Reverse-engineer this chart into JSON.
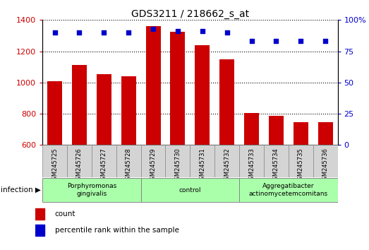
{
  "title": "GDS3211 / 218662_s_at",
  "samples": [
    "GSM245725",
    "GSM245726",
    "GSM245727",
    "GSM245728",
    "GSM245729",
    "GSM245730",
    "GSM245731",
    "GSM245732",
    "GSM245733",
    "GSM245734",
    "GSM245735",
    "GSM245736"
  ],
  "counts": [
    1010,
    1110,
    1055,
    1042,
    1360,
    1325,
    1237,
    1147,
    803,
    785,
    745,
    748
  ],
  "percentile_ranks": [
    90,
    90,
    90,
    90,
    93,
    91,
    91,
    90,
    83,
    83,
    83,
    83
  ],
  "ylim_left": [
    600,
    1400
  ],
  "ylim_right": [
    0,
    100
  ],
  "yticks_left": [
    600,
    800,
    1000,
    1200,
    1400
  ],
  "yticks_right": [
    0,
    25,
    50,
    75,
    100
  ],
  "bar_color": "#cc0000",
  "dot_color": "#0000cc",
  "groups": [
    {
      "label": "Porphyromonas\ngingivalis",
      "start": 0,
      "end": 3,
      "color": "#aaffaa"
    },
    {
      "label": "control",
      "start": 4,
      "end": 7,
      "color": "#aaffaa"
    },
    {
      "label": "Aggregatibacter\nactinomycetemcomitans",
      "start": 8,
      "end": 11,
      "color": "#aaffaa"
    }
  ],
  "tick_label_color_left": "#cc0000",
  "tick_label_color_right": "#0000cc",
  "legend_items": [
    {
      "label": "count",
      "color": "#cc0000"
    },
    {
      "label": "percentile rank within the sample",
      "color": "#0000cc"
    }
  ],
  "infection_label": "infection",
  "sample_box_color": "#d4d4d4",
  "sample_box_edge_color": "#888888"
}
